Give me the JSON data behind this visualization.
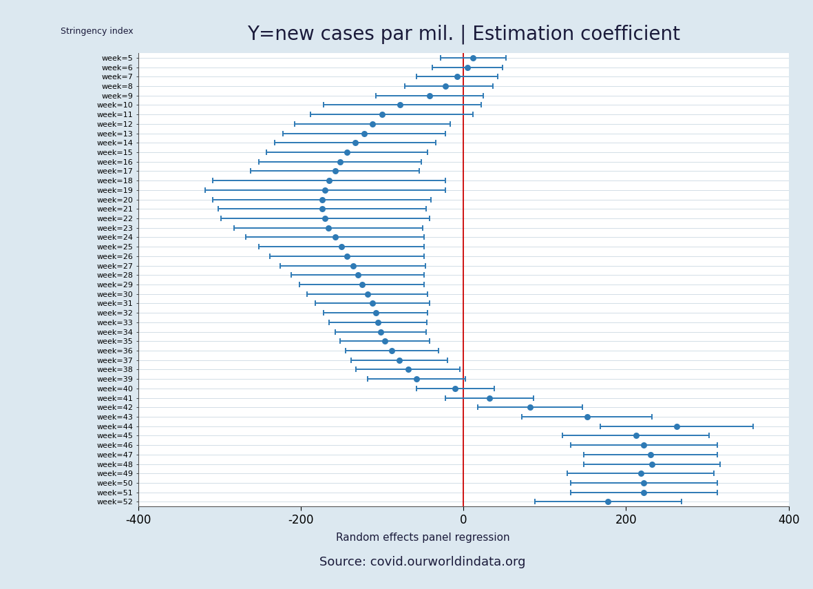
{
  "title": "Y=new cases par mil. | Estimation coefficient",
  "xlabel_bottom": "Random effects panel regression",
  "source": "Source: covid.ourworldindata.org",
  "xlim": [
    -400,
    400
  ],
  "xticks": [
    -400,
    -200,
    0,
    200,
    400
  ],
  "background_color": "#dce8f0",
  "plot_bg_color": "#ffffff",
  "dot_color": "#2e7ab5",
  "line_color": "#2e7ab5",
  "vline_color": "#cc0000",
  "stringency_label": "Stringency index",
  "weeks": [
    5,
    6,
    7,
    8,
    9,
    10,
    11,
    12,
    13,
    14,
    15,
    16,
    17,
    18,
    19,
    20,
    21,
    22,
    23,
    24,
    25,
    26,
    27,
    28,
    29,
    30,
    31,
    32,
    33,
    34,
    35,
    36,
    37,
    38,
    39,
    40,
    41,
    42,
    43,
    44,
    45,
    46,
    47,
    48,
    49,
    50,
    51,
    52
  ],
  "coef": [
    12,
    5,
    -8,
    -22,
    -42,
    -78,
    -100,
    -112,
    -122,
    -133,
    -143,
    -152,
    -158,
    -165,
    -170,
    -174,
    -174,
    -170,
    -166,
    -158,
    -150,
    -143,
    -136,
    -130,
    -125,
    -118,
    -112,
    -108,
    -105,
    -102,
    -97,
    -88,
    -79,
    -68,
    -58,
    -10,
    32,
    82,
    152,
    262,
    212,
    222,
    230,
    232,
    218,
    222,
    222,
    178
  ],
  "ci_low": [
    -28,
    -38,
    -58,
    -72,
    -108,
    -172,
    -188,
    -208,
    -222,
    -232,
    -242,
    -252,
    -262,
    -308,
    -318,
    -308,
    -302,
    -298,
    -282,
    -268,
    -252,
    -238,
    -225,
    -212,
    -202,
    -192,
    -182,
    -172,
    -165,
    -158,
    -152,
    -145,
    -138,
    -132,
    -118,
    -58,
    -22,
    18,
    72,
    168,
    122,
    132,
    148,
    148,
    128,
    132,
    132,
    88
  ],
  "ci_high": [
    52,
    48,
    42,
    36,
    24,
    22,
    12,
    -16,
    -22,
    -34,
    -44,
    -52,
    -54,
    -22,
    -22,
    -40,
    -46,
    -42,
    -50,
    -48,
    -48,
    -48,
    -47,
    -48,
    -48,
    -44,
    -42,
    -44,
    -45,
    -46,
    -42,
    -31,
    -20,
    -4,
    2,
    38,
    86,
    146,
    232,
    356,
    302,
    312,
    312,
    316,
    308,
    312,
    312,
    268
  ],
  "title_fontsize": 20,
  "tick_label_fontsize": 8,
  "xtick_fontsize": 12
}
